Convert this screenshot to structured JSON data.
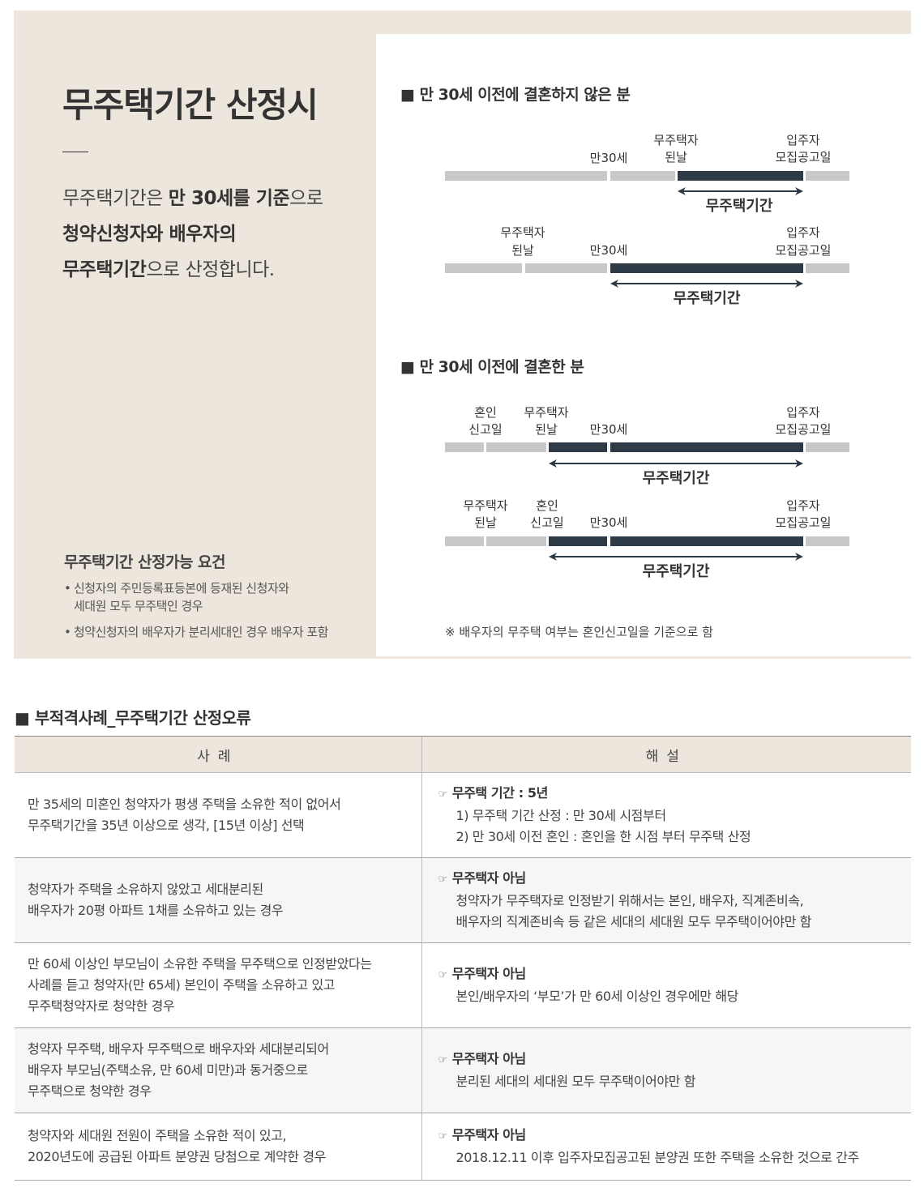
{
  "intro": {
    "title": "무주택기간 산정시",
    "body_line1_pre": "무주택기간은 ",
    "body_line1_bold": "만 30세를 기준",
    "body_line1_post": "으로",
    "body_line2_bold": "청약신청자와 배우자의",
    "body_line3_bold": "무주택기간",
    "body_line3_post": "으로 산정합니다."
  },
  "requirements": {
    "title": "무주택기간 산정가능 요건",
    "bullet": "•",
    "items": [
      [
        "신청자의 주민등록표등본에 등재된 신청자와",
        "세대원 모두 무주택인 경우"
      ],
      [
        "청약신청자의 배우자가 분리세대인 경우 배우자 포함"
      ]
    ]
  },
  "diagram": {
    "section_marker": "■",
    "section1_title": "만 30세 이전에 결혼하지 않은 분",
    "section2_title": "만 30세 이전에 결혼한 분",
    "age30": "만30세",
    "homeless_l1": "무주택자",
    "homeless_l2": "된날",
    "notice_l1": "입주자",
    "notice_l2": "모집공고일",
    "marriage_l1": "혼인",
    "marriage_l2": "신고일",
    "period_label": "무주택기간",
    "footnote": "※ 배우자의 무주택 여부는 혼인신고일을 기준으로 함",
    "colors": {
      "light_bar": "#c8c8c8",
      "dark_bar": "#2e3a45"
    }
  },
  "cases": {
    "section_marker": "■",
    "title": "부적격사례_무주택기간 산정오류",
    "headers": [
      "사례",
      "해설"
    ],
    "pointer_icon": "☞",
    "rows": [
      {
        "example": [
          "만 35세의 미혼인 청약자가 평생 주택을 소유한 적이 없어서",
          "무주택기간을 35년 이상으로 생각, [15년 이상] 선택"
        ],
        "verdict": "무주택 기간 : 5년",
        "details": [
          "1) 무주택 기간 산정 : 만 30세 시점부터",
          "2) 만 30세 이전 혼인 : 혼인을 한 시점 부터 무주택 산정"
        ]
      },
      {
        "example": [
          "청약자가 주택을 소유하지 않았고 세대분리된",
          "배우자가 20평 아파트 1채를 소유하고 있는 경우"
        ],
        "verdict": "무주택자 아님",
        "details": [
          "청약자가 무주택자로 인정받기 위해서는 본인, 배우자, 직계존비속,",
          "배우자의 직계존비속 등 같은 세대의 세대원 모두 무주택이어야만 함"
        ]
      },
      {
        "example": [
          "만 60세 이상인 부모님이 소유한 주택을 무주택으로 인정받았다는",
          "사례를 듣고 청약자(만 65세) 본인이 주택을 소유하고 있고",
          "무주택청약자로 청약한 경우"
        ],
        "verdict": "무주택자 아님",
        "details": [
          "본인/배우자의 ‘부모’가 만 60세 이상인 경우에만 해당"
        ]
      },
      {
        "example": [
          "청약자 무주택, 배우자 무주택으로 배우자와 세대분리되어",
          "배우자 부모님(주택소유, 만 60세 미만)과 동거중으로",
          "무주택으로 청약한 경우"
        ],
        "verdict": "무주택자 아님",
        "details": [
          "분리된 세대의 세대원 모두 무주택이어야만 함"
        ]
      },
      {
        "example": [
          "청약자와 세대원 전원이 주택을 소유한 적이 있고,",
          "2020년도에 공급된 아파트 분양권 당첨으로 계약한 경우"
        ],
        "verdict": "무주택자 아님",
        "details": [
          "2018.12.11 이후 입주자모집공고된 분양권 또한 주택을 소유한 것으로 간주"
        ]
      }
    ]
  }
}
